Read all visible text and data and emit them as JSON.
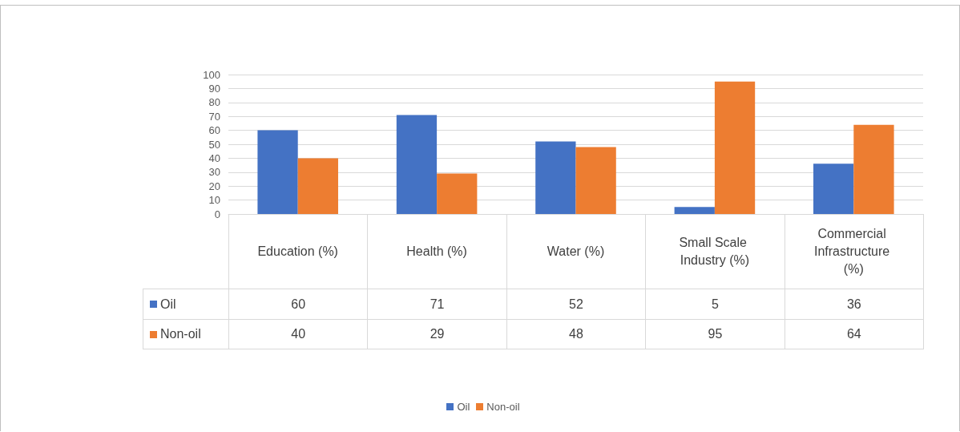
{
  "chart_data": {
    "type": "bar",
    "categories": [
      "Education (%)",
      "Health (%)",
      "Water (%)",
      "Small Scale Industry (%)",
      "Commercial Infrastructure (%)"
    ],
    "series": [
      {
        "name": "Oil",
        "color": "#4472c4",
        "values": [
          60,
          71,
          52,
          5,
          36
        ]
      },
      {
        "name": "Non-oil",
        "color": "#ed7d31",
        "values": [
          40,
          29,
          48,
          95,
          64
        ]
      }
    ],
    "ylim": [
      0,
      100
    ],
    "yticks": [
      0,
      10,
      20,
      30,
      40,
      50,
      60,
      70,
      80,
      90,
      100
    ],
    "grid": "y",
    "legend": "bottom",
    "data_labels": true
  }
}
